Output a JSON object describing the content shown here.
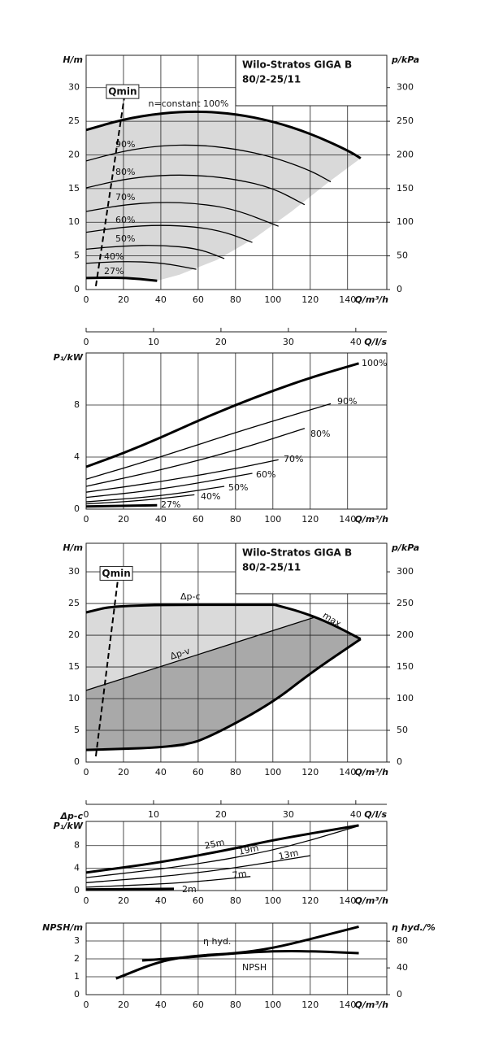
{
  "chart_data": [
    {
      "type": "line",
      "ylabel": "H/m",
      "y2label": "p/kPa",
      "xlabel": "Q/m³/h",
      "title": [
        "Wilo-Stratos GIGA B",
        "80/2-25/11"
      ],
      "xlim": [
        0,
        161
      ],
      "xticks": [
        0,
        20,
        40,
        60,
        80,
        100,
        120,
        140
      ],
      "ylim": [
        0,
        34.8
      ],
      "yticks": [
        0,
        5,
        10,
        15,
        20,
        25,
        30
      ],
      "y2lim": [
        0,
        348
      ],
      "y2ticks": [
        0,
        50,
        100,
        150,
        200,
        250,
        300
      ],
      "x2label": "Q/l/s",
      "x2lim": [
        0,
        44.6
      ],
      "x2ticks": [
        0,
        10,
        20,
        30,
        40
      ],
      "grid": true,
      "fill": "#d9d9d9",
      "qmin": {
        "label": "Qmin",
        "x": [
          5.2,
          20.4
        ],
        "values": [
          0.5,
          28.5
        ]
      },
      "series": [
        {
          "name": "n=constant 100%",
          "color": "#000000",
          "x": [
            0,
            20,
            40,
            60,
            80,
            100,
            120,
            140,
            147
          ],
          "values": [
            23.7,
            25.3,
            26.2,
            26.5,
            26.1,
            25,
            23.2,
            20.7,
            19.5
          ]
        },
        {
          "name": "90%",
          "color": "#000000",
          "x": [
            0,
            20,
            40,
            60,
            80,
            100,
            120,
            131
          ],
          "values": [
            19.1,
            20.6,
            21.4,
            21.5,
            20.9,
            19.7,
            17.7,
            16
          ]
        },
        {
          "name": "80%",
          "color": "#000000",
          "x": [
            0,
            20,
            40,
            60,
            80,
            100,
            117
          ],
          "values": [
            15.1,
            16.4,
            17,
            17,
            16.4,
            15.1,
            12.6
          ]
        },
        {
          "name": "70%",
          "color": "#000000",
          "x": [
            0,
            20,
            40,
            60,
            80,
            103
          ],
          "values": [
            11.6,
            12.6,
            13,
            12.8,
            11.9,
            9.4
          ]
        },
        {
          "name": "60%",
          "color": "#000000",
          "x": [
            0,
            20,
            40,
            60,
            75,
            89
          ],
          "values": [
            8.5,
            9.3,
            9.6,
            9.3,
            8.5,
            7
          ]
        },
        {
          "name": "50%",
          "color": "#000000",
          "x": [
            0,
            20,
            40,
            60,
            74
          ],
          "values": [
            6,
            6.5,
            6.6,
            6.1,
            4.6
          ]
        },
        {
          "name": "40%",
          "color": "#000000",
          "x": [
            0,
            20,
            40,
            59
          ],
          "values": [
            3.9,
            4.2,
            4,
            3
          ]
        },
        {
          "name": "27%",
          "color": "#000000",
          "x": [
            0,
            20,
            38
          ],
          "values": [
            1.7,
            1.8,
            1.3
          ]
        }
      ],
      "limit": {
        "x": [
          147,
          130,
          110,
          90,
          70,
          50,
          38
        ],
        "values": [
          19.5,
          16,
          11.6,
          7.6,
          4.4,
          2.2,
          1.3
        ]
      }
    },
    {
      "type": "line",
      "ylabel": "P₁/kW",
      "xlabel": "Q/m³/h",
      "xlim": [
        0,
        161
      ],
      "xticks": [
        0,
        20,
        40,
        60,
        80,
        100,
        120,
        140
      ],
      "ylim": [
        0,
        12
      ],
      "yticks": [
        0,
        4,
        8
      ],
      "grid": true,
      "series": [
        {
          "name": "100%",
          "color": "#000000",
          "x": [
            0,
            20,
            40,
            60,
            80,
            100,
            120,
            146
          ],
          "values": [
            3.25,
            4.3,
            5.5,
            6.8,
            8,
            9.1,
            10.1,
            11.2
          ]
        },
        {
          "name": "90%",
          "color": "#000000",
          "x": [
            0,
            40,
            80,
            131
          ],
          "values": [
            2.3,
            4,
            5.9,
            8.1
          ]
        },
        {
          "name": "80%",
          "color": "#000000",
          "x": [
            0,
            40,
            80,
            117
          ],
          "values": [
            1.75,
            3,
            4.5,
            6.2
          ]
        },
        {
          "name": "70%",
          "color": "#000000",
          "x": [
            0,
            40,
            80,
            103
          ],
          "values": [
            1.3,
            2.1,
            3.1,
            3.8
          ]
        },
        {
          "name": "60%",
          "color": "#000000",
          "x": [
            0,
            40,
            89
          ],
          "values": [
            0.9,
            1.5,
            2.75
          ]
        },
        {
          "name": "50%",
          "color": "#000000",
          "x": [
            0,
            40,
            74
          ],
          "values": [
            0.56,
            1,
            1.75
          ]
        },
        {
          "name": "40%",
          "color": "#000000",
          "x": [
            0,
            30,
            58
          ],
          "values": [
            0.4,
            0.65,
            1.1
          ]
        },
        {
          "name": "27%",
          "color": "#000000",
          "x": [
            0,
            38
          ],
          "values": [
            0.2,
            0.3
          ]
        }
      ]
    },
    {
      "type": "line",
      "ylabel": "H/m",
      "y2label": "p/kPa",
      "xlabel": "Q/m³/h",
      "title": [
        "Wilo-Stratos GIGA B",
        "80/2-25/11"
      ],
      "xlim": [
        0,
        161
      ],
      "xticks": [
        0,
        20,
        40,
        60,
        80,
        100,
        120,
        140
      ],
      "ylim": [
        0,
        34.5
      ],
      "yticks": [
        0,
        5,
        10,
        15,
        20,
        25,
        30
      ],
      "y2lim": [
        0,
        345
      ],
      "y2ticks": [
        0,
        50,
        100,
        150,
        200,
        250,
        300
      ],
      "x2label": "Q/l/s",
      "x2lim": [
        0,
        44.6
      ],
      "x2ticks": [
        0,
        10,
        20,
        30,
        40
      ],
      "grid": true,
      "fill": "#dadada",
      "fill2": "#a9a9a9",
      "qmin": {
        "label": "Qmin",
        "x": [
          5.2,
          17
        ],
        "values": [
          0.9,
          28.8
        ]
      },
      "series": [
        {
          "name": "Δp-c",
          "color": "#000000",
          "x": [
            0,
            17,
            101
          ],
          "values": [
            23.6,
            24.8,
            24.8
          ]
        },
        {
          "name": "Δp-v",
          "color": "#000000",
          "x": [
            0,
            122
          ],
          "values": [
            11.3,
            22.8
          ]
        },
        {
          "name": "max.",
          "color": "#000000",
          "x": [
            101,
            115,
            130,
            147
          ],
          "values": [
            24.8,
            23.7,
            22,
            19.4
          ]
        },
        {
          "color": "#000000",
          "x": [
            0,
            52,
            70,
            100,
            120,
            147
          ],
          "values": [
            1.9,
            2.4,
            4.5,
            9.4,
            14,
            19.4
          ]
        }
      ]
    },
    {
      "type": "line",
      "group_label": "Δp-c",
      "ylabel": "P₁/kW",
      "xlabel": "Q/m³/h",
      "xlim": [
        0,
        161
      ],
      "xticks": [
        0,
        20,
        40,
        60,
        80,
        100,
        120,
        140
      ],
      "ylim": [
        0,
        12.3
      ],
      "yticks": [
        0,
        4,
        8
      ],
      "grid": true,
      "series": [
        {
          "name": "25m",
          "color": "#000000",
          "x": [
            0,
            40,
            80,
            100,
            146
          ],
          "values": [
            3.2,
            5,
            7.5,
            9,
            11.6
          ]
        },
        {
          "name": "19m",
          "color": "#000000",
          "x": [
            0,
            50,
            100,
            146
          ],
          "values": [
            2.3,
            4.2,
            7,
            11.5
          ]
        },
        {
          "name": "13m",
          "color": "#000000",
          "x": [
            0,
            60,
            120
          ],
          "values": [
            1.4,
            3,
            6.2
          ]
        },
        {
          "name": "7m",
          "color": "#000000",
          "x": [
            0,
            50,
            88
          ],
          "values": [
            0.6,
            1.3,
            2.5
          ]
        },
        {
          "name": "2m",
          "color": "#000000",
          "x": [
            0,
            47
          ],
          "values": [
            0.2,
            0.3
          ]
        }
      ]
    },
    {
      "type": "line",
      "ylabel": "NPSH/m",
      "y2label": "η hyd./%",
      "xlabel": "Q/m³/h",
      "xlim": [
        0,
        161
      ],
      "xticks": [
        0,
        20,
        40,
        60,
        80,
        100,
        120,
        140
      ],
      "ylim": [
        0,
        4
      ],
      "yticks": [
        0,
        1,
        2,
        3
      ],
      "y2lim": [
        0,
        107
      ],
      "y2ticks": [
        0,
        40,
        80
      ],
      "grid": true,
      "series": [
        {
          "name": "η hyd.",
          "color": "#000000",
          "axis": "y2",
          "x": [
            30,
            60,
            80,
            100,
            120,
            146
          ],
          "values": [
            51,
            57,
            62,
            65,
            65,
            62
          ]
        },
        {
          "name": "NPSH",
          "color": "#000000",
          "x": [
            16,
            40,
            60,
            80,
            100,
            120,
            146
          ],
          "values": [
            0.9,
            1.9,
            2.2,
            2.3,
            2.6,
            3.1,
            3.8
          ]
        }
      ]
    }
  ]
}
